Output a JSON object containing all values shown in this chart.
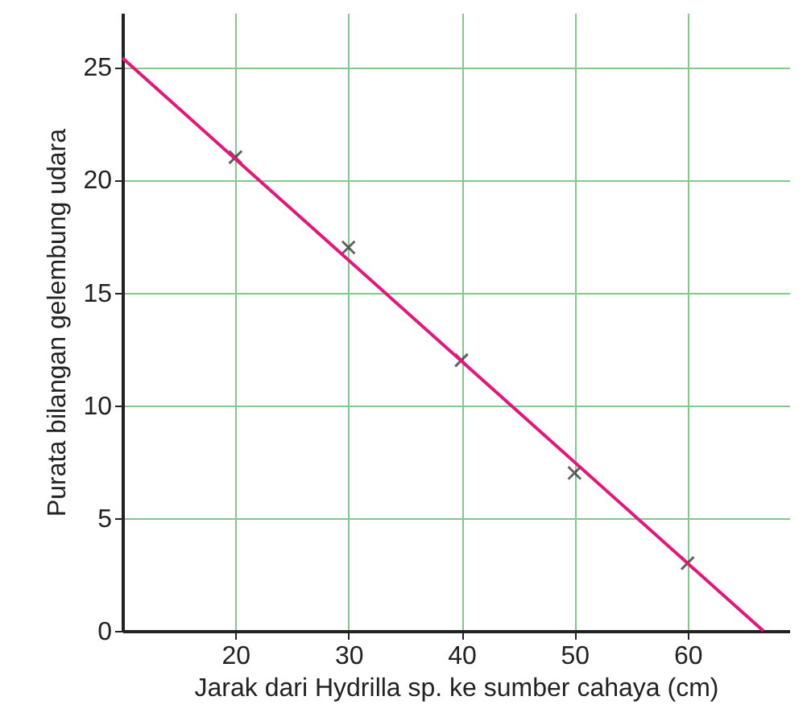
{
  "chart_data": {
    "type": "scatter",
    "xlabel": "Jarak dari Hydrilla sp. ke sumber cahaya (cm)",
    "ylabel": "Purata bilangan gelembung udara",
    "x": [
      20,
      30,
      40,
      50,
      60
    ],
    "series": [
      {
        "color": "#222222",
        "marker": "cross",
        "values": [
          21,
          17,
          12,
          7,
          3
        ]
      },
      {
        "type": "line",
        "color": "#e6157a",
        "marker": "none",
        "x": [
          10,
          66.7
        ],
        "values": [
          25.4,
          0
        ]
      }
    ],
    "xlim": [
      10,
      69
    ],
    "xticks": [
      20,
      30,
      40,
      50,
      60
    ],
    "ylim": [
      0,
      27.4
    ],
    "yticks": [
      0,
      5,
      10,
      15,
      20,
      25
    ],
    "grid": true
  }
}
